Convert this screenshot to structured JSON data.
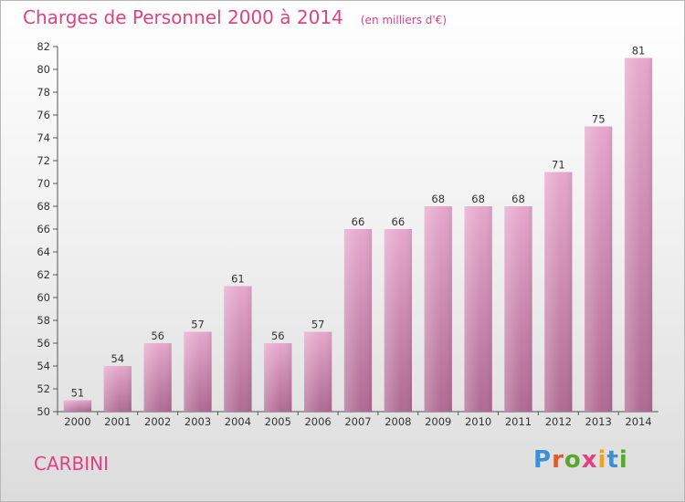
{
  "header": {
    "title": "Charges de Personnel 2000 à 2014",
    "subtitle": "(en milliers d'€)"
  },
  "footer": {
    "commune": "CARBINI",
    "logo_text": "Proxiti",
    "logo_colors": [
      "#3a8fd8",
      "#e05a2b",
      "#5aa82b",
      "#e0427f",
      "#f0a21c",
      "#3a8fd8",
      "#5aa82b"
    ]
  },
  "colors": {
    "accent": "#e0427f",
    "bar_light": "#e6a8cc",
    "bar_dark": "#b06a93",
    "axis": "#555555"
  },
  "chart_data": {
    "type": "bar",
    "title": "Charges de Personnel 2000 à 2014",
    "subtitle": "(en milliers d'€)",
    "categories": [
      "2000",
      "2001",
      "2002",
      "2003",
      "2004",
      "2005",
      "2006",
      "2007",
      "2008",
      "2009",
      "2010",
      "2011",
      "2012",
      "2013",
      "2014"
    ],
    "values": [
      51,
      54,
      56,
      57,
      61,
      56,
      57,
      66,
      66,
      68,
      68,
      68,
      71,
      75,
      81
    ],
    "ylim": [
      50,
      82
    ],
    "yticks": [
      50,
      52,
      54,
      56,
      58,
      60,
      62,
      64,
      66,
      68,
      70,
      72,
      74,
      76,
      78,
      80,
      82
    ],
    "grid": false,
    "legend": "none"
  }
}
